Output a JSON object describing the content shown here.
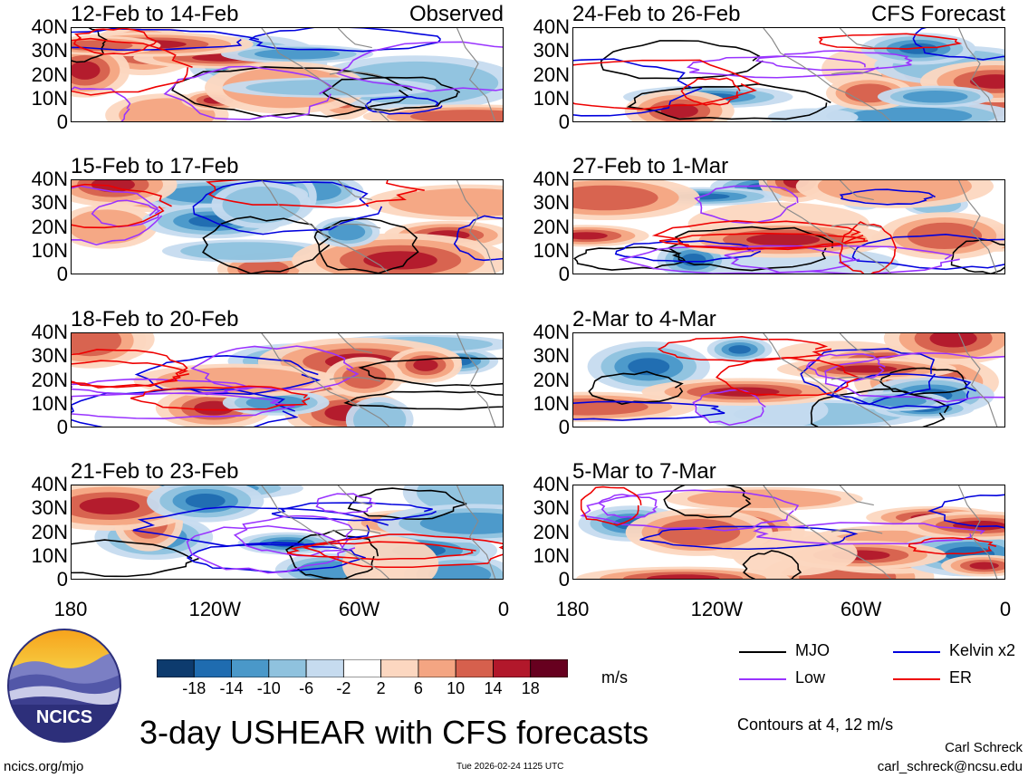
{
  "header": {
    "left_label": "Observed",
    "right_label": "CFS Forecast"
  },
  "panels": [
    {
      "title": "12-Feb to 14-Feb",
      "column": "left",
      "row": 0,
      "seed": 3
    },
    {
      "title": "15-Feb to 17-Feb",
      "column": "left",
      "row": 1,
      "seed": 7
    },
    {
      "title": "18-Feb to 20-Feb",
      "column": "left",
      "row": 2,
      "seed": 11
    },
    {
      "title": "21-Feb to 23-Feb",
      "column": "left",
      "row": 3,
      "seed": 17
    },
    {
      "title": "24-Feb to 26-Feb",
      "column": "right",
      "row": 0,
      "seed": 23
    },
    {
      "title": "27-Feb to 1-Mar",
      "column": "right",
      "row": 1,
      "seed": 29
    },
    {
      "title": "2-Mar to 4-Mar",
      "column": "right",
      "row": 2,
      "seed": 31
    },
    {
      "title": "5-Mar to 7-Mar",
      "column": "right",
      "row": 3,
      "seed": 37
    }
  ],
  "chart_data": {
    "type": "heatmap",
    "title": "3-day USHEAR with CFS forecasts",
    "x_axis": {
      "range": [
        -180,
        0
      ],
      "ticks": [
        "180",
        "120W",
        "60W",
        "0"
      ]
    },
    "y_axis": {
      "range": [
        0,
        40
      ],
      "ticks": [
        "40N",
        "30N",
        "20N",
        "10N",
        "0"
      ]
    },
    "colorbar": {
      "unit": "m/s",
      "tick_labels": [
        "-18",
        "-14",
        "-10",
        "-6",
        "-2",
        "2",
        "6",
        "10",
        "14",
        "18"
      ],
      "colors": [
        "#0d3b6e",
        "#1f6cb0",
        "#4a98c9",
        "#8fc2de",
        "#c6dbef",
        "#ffffff",
        "#fcd7c0",
        "#f4a582",
        "#d6604d",
        "#b2182b",
        "#67001f"
      ]
    },
    "contours": {
      "note": "Contours at 4, 12 m/s",
      "series": [
        {
          "name": "MJO",
          "color": "#000000"
        },
        {
          "name": "Kelvin x2",
          "color": "#0000dd"
        },
        {
          "name": "Low",
          "color": "#9933ff"
        },
        {
          "name": "ER",
          "color": "#ee0000"
        }
      ]
    }
  },
  "logo": {
    "text": "NCICS"
  },
  "footer": {
    "website": "ncics.org/mjo",
    "timestamp": "Tue 2026-02-24 1125 UTC",
    "author": "Carl Schreck",
    "email": "carl_schreck@ncsu.edu"
  }
}
